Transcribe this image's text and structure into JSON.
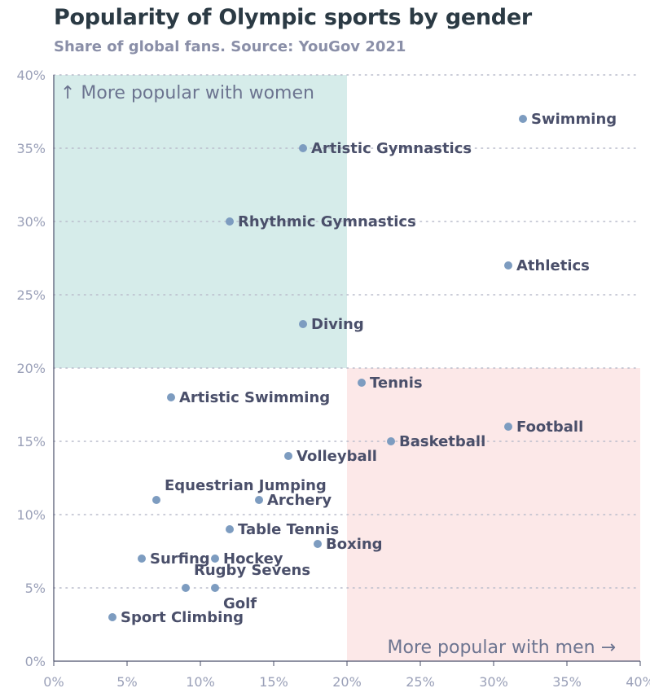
{
  "chart_data": {
    "type": "scatter",
    "title": "Popularity of Olympic sports by gender",
    "subtitle": "Share of global fans. Source: YouGov 2021",
    "xlim": [
      0,
      40
    ],
    "ylim": [
      0,
      40
    ],
    "x_ticks": [
      "0%",
      "5%",
      "10%",
      "15%",
      "20%",
      "25%",
      "30%",
      "35%",
      "40%"
    ],
    "y_ticks": [
      "0%",
      "5%",
      "10%",
      "15%",
      "20%",
      "25%",
      "30%",
      "35%",
      "40%"
    ],
    "grid": "horizontal dotted",
    "regions": [
      {
        "label": "↑ More popular with women",
        "x": [
          0,
          20
        ],
        "y": [
          20,
          40
        ],
        "color": "#d6ecea"
      },
      {
        "label": "More popular with men →",
        "x": [
          20,
          40
        ],
        "y": [
          0,
          20
        ],
        "color": "#fce8e8"
      }
    ],
    "point_color": "#7d9cc0",
    "points": [
      {
        "name": "Swimming",
        "x": 32,
        "y": 37
      },
      {
        "name": "Artistic Gymnastics",
        "x": 17,
        "y": 35
      },
      {
        "name": "Rhythmic Gymnastics",
        "x": 12,
        "y": 30
      },
      {
        "name": "Athletics",
        "x": 31,
        "y": 27
      },
      {
        "name": "Diving",
        "x": 17,
        "y": 23
      },
      {
        "name": "Tennis",
        "x": 21,
        "y": 19
      },
      {
        "name": "Artistic Swimming",
        "x": 8,
        "y": 18
      },
      {
        "name": "Football",
        "x": 31,
        "y": 16
      },
      {
        "name": "Basketball",
        "x": 23,
        "y": 15
      },
      {
        "name": "Volleyball",
        "x": 16,
        "y": 14
      },
      {
        "name": "Equestrian Jumping",
        "x": 7,
        "y": 11
      },
      {
        "name": "Archery",
        "x": 14,
        "y": 11
      },
      {
        "name": "Table Tennis",
        "x": 12,
        "y": 9
      },
      {
        "name": "Boxing",
        "x": 18,
        "y": 8
      },
      {
        "name": "Surfing",
        "x": 6,
        "y": 7
      },
      {
        "name": "Hockey",
        "x": 11,
        "y": 7
      },
      {
        "name": "Rugby Sevens",
        "x": 9,
        "y": 5
      },
      {
        "name": "Golf",
        "x": 11,
        "y": 5
      },
      {
        "name": "Sport Climbing",
        "x": 4,
        "y": 3
      }
    ]
  }
}
